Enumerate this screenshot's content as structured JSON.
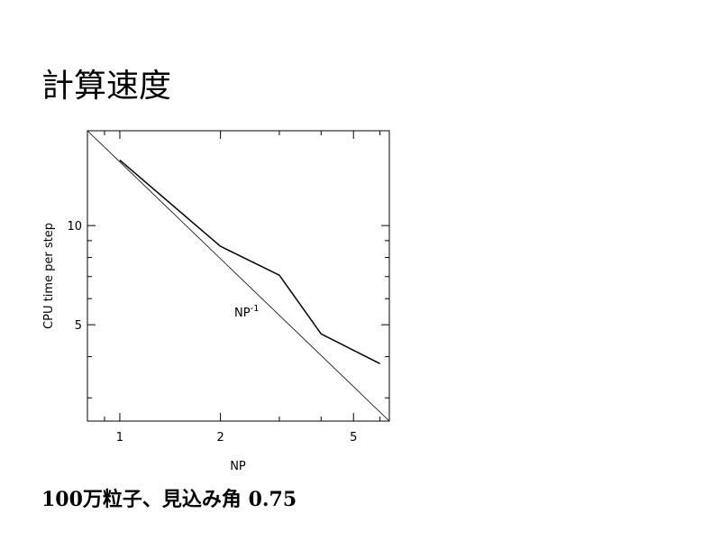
{
  "title": "計算速度",
  "chart_data": {
    "type": "line",
    "xlabel": "NP",
    "ylabel": "CPU time per step",
    "xscale": "log",
    "yscale": "log",
    "xlim": [
      0.8,
      6.4
    ],
    "ylim": [
      2.55,
      19.4
    ],
    "xticks": [
      1,
      2,
      5
    ],
    "yticks": [
      5,
      10
    ],
    "xminorticks": [
      0.9,
      3,
      4,
      6
    ],
    "yminorticks": [
      3,
      4,
      6,
      7,
      8,
      9
    ],
    "series": [
      {
        "color": "#000000",
        "width": 1.5,
        "x": [
          1,
          2,
          3,
          4,
          6
        ],
        "values": [
          15.8,
          8.65,
          7.07,
          4.69,
          3.81
        ]
      },
      {
        "color": "#000000",
        "width": 0.8,
        "x": [
          0.8,
          6.4
        ],
        "values": [
          19.4,
          2.55
        ]
      }
    ],
    "annotation": {
      "text": "NP",
      "sup": "-1",
      "x": 2.2,
      "y": 5.3
    }
  },
  "caption": "100万粒子、見込み角 0.75"
}
